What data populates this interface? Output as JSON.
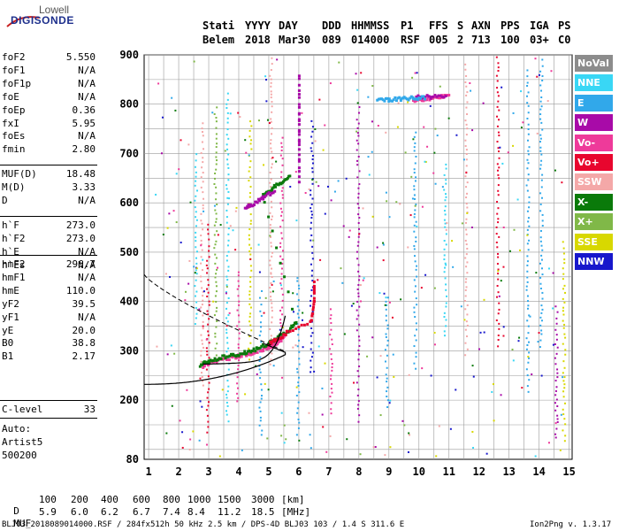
{
  "logo": {
    "line1": "Lowell",
    "line2": "DIGISONDE"
  },
  "header": {
    "row1": [
      "Stati",
      "YYYY",
      "DAY",
      "DDD",
      "HHMMSS",
      "P1",
      "FFS",
      "S",
      "AXN",
      "PPS",
      "IGA",
      "PS"
    ],
    "row2": [
      "Belem",
      "2018",
      "Mar30",
      "089",
      "014000",
      "RSF",
      "005",
      "2",
      "713",
      "100",
      "03+",
      "C0"
    ]
  },
  "params": {
    "group1": [
      {
        "name": "foF2",
        "value": "5.550"
      },
      {
        "name": "foF1",
        "value": "N/A"
      },
      {
        "name": "foF1p",
        "value": "N/A"
      },
      {
        "name": "foE",
        "value": "N/A"
      },
      {
        "name": "foEp",
        "value": "0.36"
      },
      {
        "name": "fxI",
        "value": "5.95"
      },
      {
        "name": "foEs",
        "value": "N/A"
      },
      {
        "name": "fmin",
        "value": "2.80"
      }
    ],
    "group2": [
      {
        "name": "MUF(D)",
        "value": "18.48"
      },
      {
        "name": "M(D)",
        "value": "3.33"
      },
      {
        "name": "D",
        "value": "N/A"
      }
    ],
    "group3": [
      {
        "name": "h`F",
        "value": "273.0"
      },
      {
        "name": "h`F2",
        "value": "273.0"
      },
      {
        "name": "h`E",
        "value": "N/A"
      },
      {
        "name": "h`Es",
        "value": "N/A"
      }
    ],
    "group4": [
      {
        "name": "hmF2",
        "value": "296.7"
      },
      {
        "name": "hmF1",
        "value": "N/A"
      },
      {
        "name": "hmE",
        "value": "110.0"
      },
      {
        "name": "yF2",
        "value": "39.5"
      },
      {
        "name": "yF1",
        "value": "N/A"
      },
      {
        "name": "yE",
        "value": "20.0"
      },
      {
        "name": "B0",
        "value": "38.8"
      },
      {
        "name": "B1",
        "value": "2.17"
      }
    ],
    "group5": [
      {
        "name": "C-level",
        "value": "33"
      }
    ],
    "notes": [
      "Auto:",
      "Artist5",
      "500200"
    ]
  },
  "legend": [
    {
      "label": "NoVal",
      "color": "#8c8c8c"
    },
    {
      "label": "NNE",
      "color": "#39d7f5"
    },
    {
      "label": "E",
      "color": "#31a8ea"
    },
    {
      "label": "W",
      "color": "#a80aa8"
    },
    {
      "label": "Vo-",
      "color": "#ee3a9a"
    },
    {
      "label": "Vo+",
      "color": "#e8062e"
    },
    {
      "label": "SSW",
      "color": "#f4a8a8"
    },
    {
      "label": "X-",
      "color": "#0a7a0a"
    },
    {
      "label": "X+",
      "color": "#80b848"
    },
    {
      "label": "SSE",
      "color": "#d8d800"
    },
    {
      "label": "NNW",
      "color": "#1818cc"
    }
  ],
  "chart_data": {
    "type": "scatter",
    "x_ticks": [
      "1",
      "2",
      "3",
      "4",
      "5",
      "6",
      "7",
      "8",
      "9",
      "10",
      "11",
      "12",
      "13",
      "14",
      "15"
    ],
    "y_ticks": [
      "200",
      "300",
      "400",
      "500",
      "600",
      "700",
      "800",
      "900"
    ],
    "y_min_label": "80",
    "xlim": [
      0.85,
      15.1
    ],
    "ylim": [
      80,
      900
    ],
    "grid": true,
    "xlabel": "",
    "ylabel": "",
    "series": [
      {
        "legend": "Vo-",
        "color": "#ee3a9a",
        "points": [
          [
            2.8,
            270
          ],
          [
            3.0,
            276
          ],
          [
            3.3,
            281
          ],
          [
            3.6,
            285
          ],
          [
            3.9,
            289
          ],
          [
            4.2,
            293
          ],
          [
            4.5,
            298
          ],
          [
            4.8,
            304
          ],
          [
            5.0,
            309
          ],
          [
            5.2,
            315
          ],
          [
            5.4,
            324
          ],
          [
            5.55,
            335
          ],
          [
            9.8,
            805
          ],
          [
            10.2,
            810
          ],
          [
            10.6,
            815
          ],
          [
            11.0,
            820
          ]
        ]
      },
      {
        "legend": "X-",
        "color": "#0a7a0a",
        "points": [
          [
            2.7,
            272
          ],
          [
            3.0,
            280
          ],
          [
            3.4,
            287
          ],
          [
            3.8,
            291
          ],
          [
            4.2,
            297
          ],
          [
            4.6,
            305
          ],
          [
            5.0,
            316
          ],
          [
            5.3,
            328
          ],
          [
            5.6,
            340
          ],
          [
            5.9,
            358
          ],
          [
            4.8,
            615
          ],
          [
            5.1,
            630
          ],
          [
            5.4,
            642
          ],
          [
            5.7,
            655
          ]
        ]
      },
      {
        "legend": "W",
        "color": "#a80aa8",
        "points": [
          [
            4.2,
            590
          ],
          [
            4.5,
            600
          ],
          [
            4.8,
            612
          ],
          [
            5.2,
            625
          ],
          [
            9.9,
            815
          ],
          [
            10.4,
            816
          ],
          [
            10.9,
            818
          ],
          [
            6.0,
            860
          ],
          [
            6.0,
            780
          ],
          [
            6.0,
            720
          ],
          [
            6.0,
            640
          ]
        ]
      },
      {
        "legend": "E",
        "color": "#31a8ea",
        "points": [
          [
            8.6,
            808
          ],
          [
            9.0,
            810
          ],
          [
            9.4,
            812
          ],
          [
            9.8,
            813
          ],
          [
            10.2,
            814
          ]
        ]
      },
      {
        "legend": "Vo+",
        "color": "#e8062e",
        "points": [
          [
            5.0,
            315
          ],
          [
            5.3,
            325
          ],
          [
            5.6,
            338
          ],
          [
            6.4,
            360
          ],
          [
            6.5,
            400
          ],
          [
            6.5,
            440
          ]
        ]
      }
    ]
  },
  "footer": {
    "d_label": "D",
    "d_values": [
      "100",
      "200",
      "400",
      "600",
      "800",
      "1000",
      "1500",
      "3000"
    ],
    "d_unit": "[km]",
    "muf_label": "MUF",
    "muf_values": [
      "5.9",
      "6.0",
      "6.2",
      "6.7",
      "7.4",
      "8.4",
      "11.2",
      "18.5"
    ],
    "muf_unit": "[MHz]",
    "file_info": "BLJ03_2018089014000.RSF / 284fx512h 50 kHz 2.5 km / DPS-4D BLJ03 103 / 1.4 S 311.6 E",
    "version": "Ion2Png v. 1.3.17"
  }
}
